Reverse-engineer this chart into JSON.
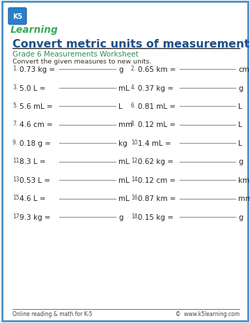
{
  "title": "Convert metric units of measurement",
  "subtitle": "Grade 6 Measurements Worksheet",
  "instruction": "Convert the given measures to new units.",
  "problems": [
    {
      "num": "1.",
      "left": "0.73 kg =",
      "right_unit": "g"
    },
    {
      "num": "2.",
      "left": "0.65 km =",
      "right_unit": "cm"
    },
    {
      "num": "3.",
      "left": "5.0 L =",
      "right_unit": "mL"
    },
    {
      "num": "4.",
      "left": "0.37 kg =",
      "right_unit": "g"
    },
    {
      "num": "5.",
      "left": "5.6 mL =",
      "right_unit": "L"
    },
    {
      "num": "6.",
      "left": "0.81 mL =",
      "right_unit": "L"
    },
    {
      "num": "7.",
      "left": "4.6 cm =",
      "right_unit": "mm"
    },
    {
      "num": "8.",
      "left": "0.12 mL =",
      "right_unit": "L"
    },
    {
      "num": "9.",
      "left": "0.18 g =",
      "right_unit": "kg"
    },
    {
      "num": "10.",
      "left": "1.4 mL =",
      "right_unit": "L"
    },
    {
      "num": "11.",
      "left": "8.3 L =",
      "right_unit": "mL"
    },
    {
      "num": "12.",
      "left": "0.62 kg =",
      "right_unit": "g"
    },
    {
      "num": "13.",
      "left": "0.53 L =",
      "right_unit": "mL"
    },
    {
      "num": "14.",
      "left": "0.12 cm =",
      "right_unit": "km"
    },
    {
      "num": "15.",
      "left": "4.6 L =",
      "right_unit": "mL"
    },
    {
      "num": "16.",
      "left": "0.87 km =",
      "right_unit": "mm"
    },
    {
      "num": "17.",
      "left": "9.3 kg =",
      "right_unit": "g"
    },
    {
      "num": "18.",
      "left": "0.15 kg =",
      "right_unit": "g"
    }
  ],
  "footer_left": "Online reading & math for K-5",
  "footer_right": "©  www.k5learning.com",
  "title_color": "#1a4f8a",
  "subtitle_color": "#2e8b57",
  "border_color": "#4a90c4",
  "bg_color": "#ffffff",
  "line_color": "#999999",
  "title_fontsize": 11.5,
  "subtitle_fontsize": 7.5,
  "instruction_fontsize": 6.8,
  "problem_num_fontsize": 5.5,
  "problem_fontsize": 7.5,
  "footer_fontsize": 5.5
}
